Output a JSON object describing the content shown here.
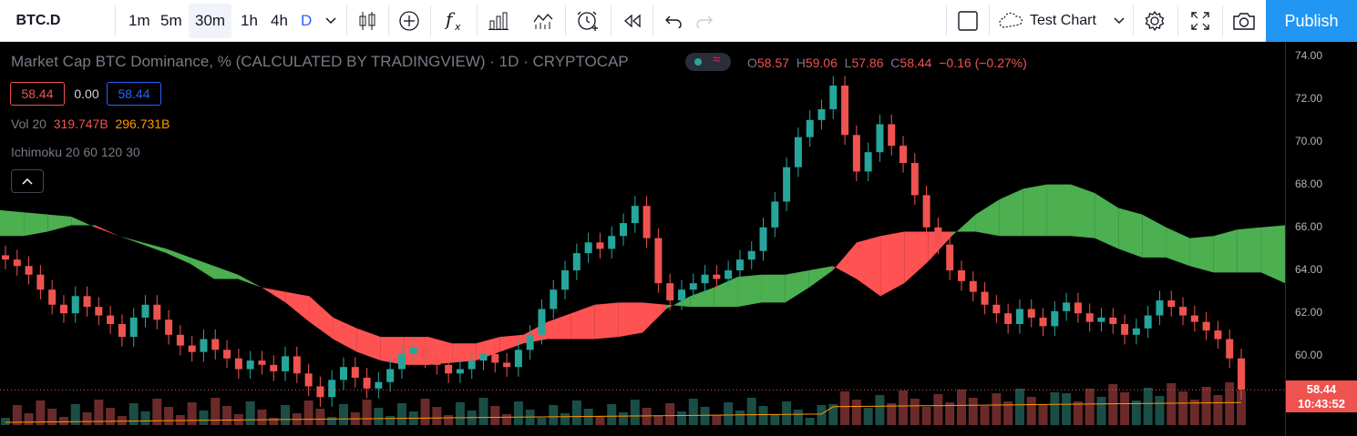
{
  "toolbar": {
    "symbol": "BTC.D",
    "intervals": [
      "1m",
      "5m",
      "30m",
      "1h",
      "4h",
      "D"
    ],
    "active_interval": "30m",
    "chart_name": "Test Chart",
    "publish_label": "Publish"
  },
  "legend": {
    "title": "Market Cap BTC Dominance, % (CALCULATED BY TRADINGVIEW) · 1D · CRYPTOCAP",
    "o_key": "O",
    "o": "58.57",
    "h_key": "H",
    "h": "59.06",
    "l_key": "L",
    "l": "57.86",
    "c_key": "C",
    "c": "58.44",
    "change": "−0.16 (−0.27%)",
    "sell_price": "58.44",
    "spread": "0.00",
    "buy_price": "58.44"
  },
  "indicators": {
    "vol_label": "Vol 20",
    "vol_value_1": "319.747B",
    "vol_value_2": "296.731B",
    "ichimoku_label": "Ichimoku 20 60 120 30"
  },
  "price_scale": {
    "ticks": [
      "74.00",
      "72.00",
      "70.00",
      "68.00",
      "66.00",
      "64.00",
      "62.00",
      "60.00"
    ],
    "last_price": "58.44",
    "countdown": "10:43:52"
  },
  "colors": {
    "up": "#26a69a",
    "down": "#ef5350",
    "cloud_bull": "#4caf50",
    "cloud_bear": "#ff5252",
    "accent": "#2196f3"
  },
  "chart_data": {
    "type": "candlestick",
    "ylim": [
      57,
      75
    ],
    "close_series": [
      64.5,
      64.2,
      63.8,
      63.1,
      62.4,
      62.0,
      62.8,
      62.3,
      61.9,
      61.5,
      60.9,
      61.8,
      62.4,
      61.7,
      61.0,
      60.5,
      60.2,
      60.8,
      60.3,
      59.9,
      59.4,
      59.8,
      59.6,
      59.3,
      60.0,
      59.2,
      58.6,
      58.1,
      58.9,
      59.5,
      59.0,
      58.5,
      58.8,
      59.4,
      60.1,
      60.4,
      59.9,
      59.6,
      59.2,
      59.4,
      59.8,
      60.1,
      59.7,
      59.5,
      60.3,
      61.0,
      62.2,
      63.1,
      64.0,
      64.8,
      65.3,
      65.0,
      65.6,
      66.2,
      67.0,
      65.5,
      63.4,
      62.6,
      63.1,
      63.4,
      63.8,
      63.6,
      64.0,
      64.5,
      64.9,
      66.0,
      67.2,
      68.8,
      70.2,
      71.0,
      71.5,
      72.6,
      70.3,
      68.6,
      69.5,
      70.8,
      69.8,
      69.0,
      67.5,
      66.0,
      65.2,
      64.0,
      63.5,
      63.0,
      62.4,
      62.0,
      61.5,
      62.2,
      61.8,
      61.4,
      62.1,
      62.5,
      62.0,
      61.6,
      61.8,
      61.5,
      61.0,
      61.3,
      61.9,
      62.6,
      62.3,
      61.9,
      61.6,
      61.2,
      60.8,
      59.9,
      58.44
    ]
  }
}
